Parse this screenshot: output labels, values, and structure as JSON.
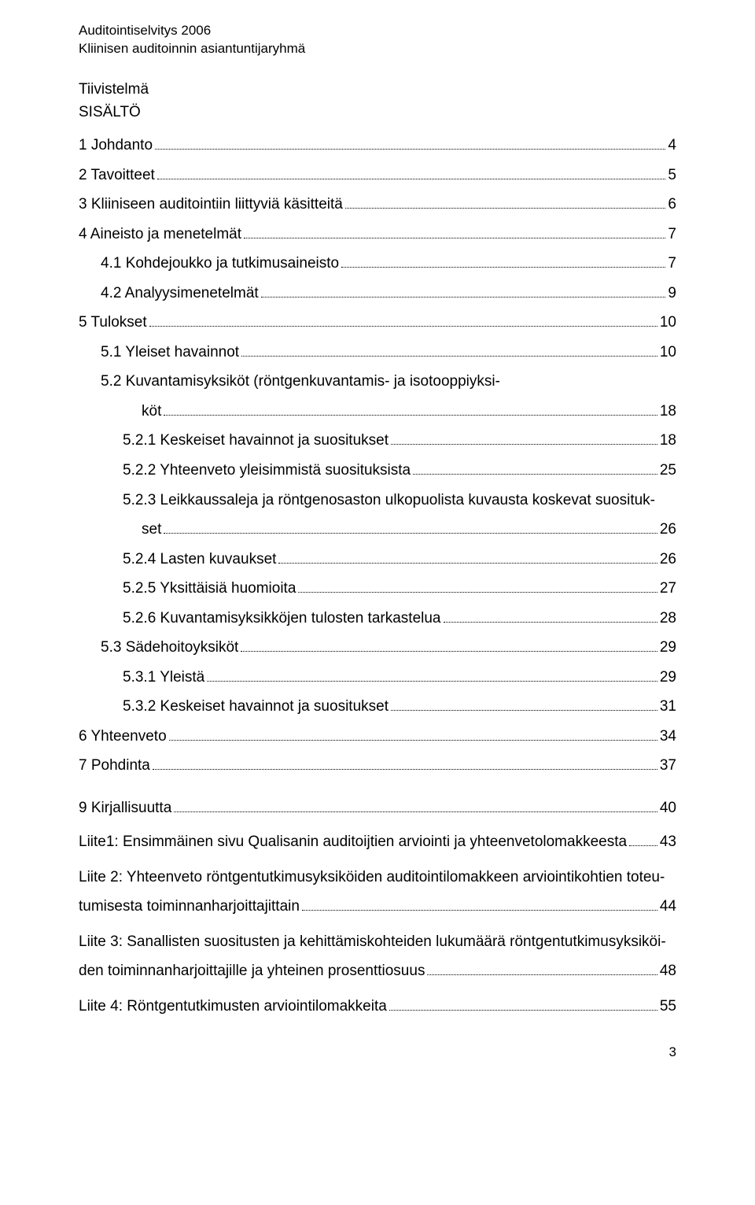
{
  "header": {
    "l1": "Auditointiselvitys 2006",
    "l2": "Kliinisen auditoinnin asiantuntijaryhmä"
  },
  "section_titles": {
    "tiivistelma": "Tiivistelmä",
    "sisalto": "SISÄLTÖ"
  },
  "toc": {
    "e0": {
      "label": "1  Johdanto",
      "page": "4"
    },
    "e1": {
      "label": "2  Tavoitteet",
      "page": "5"
    },
    "e2": {
      "label": "3  Kliiniseen auditointiin liittyviä käsitteitä",
      "page": "6"
    },
    "e3": {
      "label": "4  Aineisto ja menetelmät",
      "page": "7"
    },
    "e4": {
      "label": "4.1 Kohdejoukko ja tutkimusaineisto",
      "page": "7"
    },
    "e5": {
      "label": "4.2 Analyysimenetelmät",
      "page": "9"
    },
    "e6": {
      "label": "5  Tulokset",
      "page": "10"
    },
    "e7": {
      "label": "5.1 Yleiset havainnot",
      "page": "10"
    },
    "e8a": {
      "label": "5.2 Kuvantamisyksiköt (röntgenkuvantamis- ja isotooppiyksi-"
    },
    "e8b": {
      "label": "köt",
      "page": "18"
    },
    "e9": {
      "label": "5.2.1 Keskeiset havainnot ja suositukset",
      "page": "18"
    },
    "e10": {
      "label": "5.2.2 Yhteenveto yleisimmistä suosituksista",
      "page": "25"
    },
    "e11a": {
      "label": "5.2.3 Leikkaussaleja ja röntgenosaston ulkopuolista kuvausta koskevat suosituk-"
    },
    "e11b": {
      "label": "set",
      "page": "26"
    },
    "e12": {
      "label": "5.2.4 Lasten kuvaukset",
      "page": "26"
    },
    "e13": {
      "label": "5.2.5 Yksittäisiä huomioita",
      "page": "27"
    },
    "e14": {
      "label": "5.2.6 Kuvantamisyksikköjen tulosten tarkastelua",
      "page": "28"
    },
    "e15": {
      "label": "5.3 Sädehoitoyksiköt",
      "page": "29"
    },
    "e16": {
      "label": "5.3.1 Yleistä",
      "page": "29"
    },
    "e17": {
      "label": "5.3.2 Keskeiset havainnot ja suositukset",
      "page": "31"
    },
    "e18": {
      "label": "6  Yhteenveto",
      "page": "34"
    },
    "e19": {
      "label": "7   Pohdinta",
      "page": "37"
    },
    "e20": {
      "label": "9  Kirjallisuutta",
      "page": "40"
    }
  },
  "body": {
    "p1": {
      "label": "Liite1: Ensimmäinen sivu Qualisanin auditoijtien arviointi ja yhteenvetolomakkeesta",
      "page": "43"
    },
    "p2a": "Liite 2: Yhteenveto  röntgentutkimusyksiköiden auditointilomakkeen arviointikohtien toteu-",
    "p2b": {
      "label": "tumisesta toiminnanharjoittajittain",
      "page": "44"
    },
    "p3a": "Liite 3: Sanallisten suositusten ja kehittämiskohteiden lukumäärä röntgentutkimusyksiköi-",
    "p3b": {
      "label": "den toiminnanharjoittajille ja yhteinen prosenttiosuus",
      "page": "48"
    },
    "p4": {
      "label": "Liite 4: Röntgentutkimusten arviointilomakkeita",
      "page": "55"
    }
  },
  "footer": {
    "pagenum": "3"
  }
}
